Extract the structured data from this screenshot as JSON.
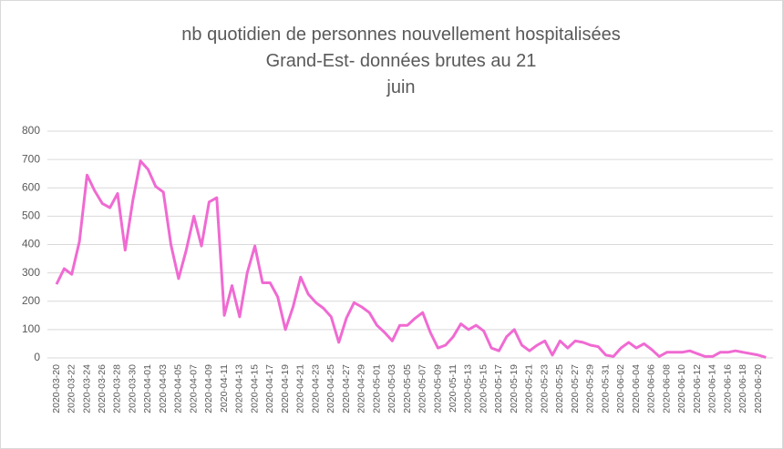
{
  "chart_data": {
    "type": "line",
    "title": [
      "nb quotidien de personnes nouvellement hospitalisées",
      "Grand-Est- données brutes au 21",
      "juin"
    ],
    "categories": [
      "2020-03-20",
      null,
      "2020-03-22",
      null,
      "2020-03-24",
      null,
      "2020-03-26",
      null,
      "2020-03-28",
      null,
      "2020-03-30",
      null,
      "2020-04-01",
      null,
      "2020-04-03",
      null,
      "2020-04-05",
      null,
      "2020-04-07",
      null,
      "2020-04-09",
      null,
      "2020-04-11",
      null,
      "2020-04-13",
      null,
      "2020-04-15",
      null,
      "2020-04-17",
      null,
      "2020-04-19",
      null,
      "2020-04-21",
      null,
      "2020-04-23",
      null,
      "2020-04-25",
      null,
      "2020-04-27",
      null,
      "2020-04-29",
      null,
      "2020-05-01",
      null,
      "2020-05-03",
      null,
      "2020-05-05",
      null,
      "2020-05-07",
      null,
      "2020-05-09",
      null,
      "2020-05-11",
      null,
      "2020-05-13",
      null,
      "2020-05-15",
      null,
      "2020-05-17",
      null,
      "2020-05-19",
      null,
      "2020-05-21",
      null,
      "2020-05-23",
      null,
      "2020-05-25",
      null,
      "2020-05-27",
      null,
      "2020-05-29",
      null,
      "2020-05-31",
      null,
      "2020-06-02",
      null,
      "2020-06-04",
      null,
      "2020-06-06",
      null,
      "2020-06-08",
      null,
      "2020-06-10",
      null,
      "2020-06-12",
      null,
      "2020-06-14",
      null,
      "2020-06-16",
      null,
      "2020-06-18",
      null,
      "2020-06-20",
      null
    ],
    "values": [
      260,
      315,
      295,
      410,
      645,
      590,
      545,
      530,
      580,
      380,
      555,
      695,
      665,
      605,
      585,
      400,
      280,
      380,
      500,
      395,
      550,
      565,
      150,
      255,
      145,
      300,
      395,
      265,
      265,
      215,
      100,
      180,
      285,
      225,
      195,
      175,
      145,
      55,
      140,
      195,
      180,
      160,
      115,
      90,
      60,
      115,
      115,
      140,
      160,
      90,
      35,
      45,
      75,
      120,
      100,
      115,
      95,
      35,
      25,
      75,
      100,
      45,
      25,
      45,
      60,
      10,
      60,
      35,
      60,
      55,
      45,
      40,
      10,
      5,
      35,
      55,
      35,
      50,
      30,
      5,
      20,
      20,
      20,
      25,
      15,
      5,
      5,
      20,
      20,
      25,
      20,
      15,
      10,
      2
    ],
    "color": "#f06ad2",
    "ylim": [
      0,
      800
    ],
    "yticks": [
      0,
      100,
      200,
      300,
      400,
      500,
      600,
      700,
      800
    ],
    "grid": true
  }
}
